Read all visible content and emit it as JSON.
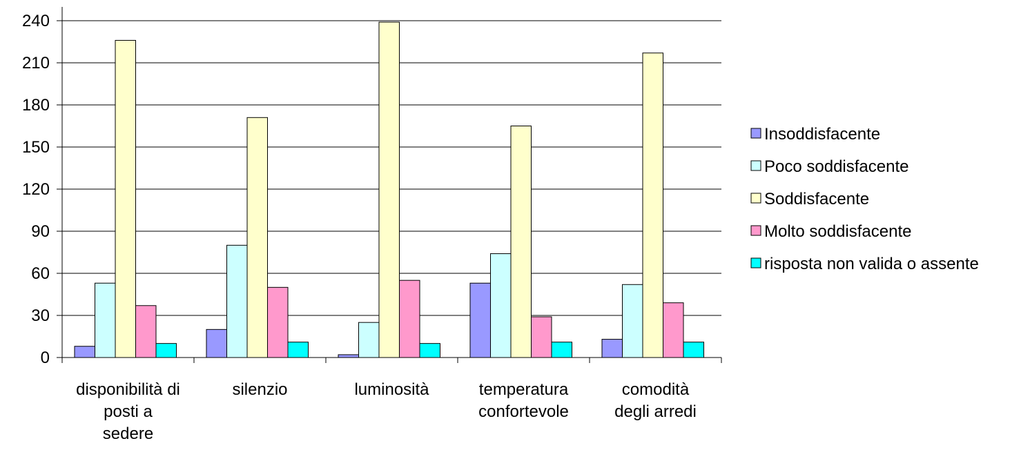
{
  "chart_data": {
    "type": "bar",
    "title": "",
    "xlabel": "",
    "ylabel": "",
    "ylim": [
      0,
      240
    ],
    "yticks": [
      "0",
      "30",
      "60",
      "90",
      "120",
      "150",
      "180",
      "210",
      "240"
    ],
    "grid": true,
    "legend_position": "right",
    "categories": [
      [
        "disponibilità di",
        "posti a",
        "sedere"
      ],
      [
        "silenzio"
      ],
      [
        "luminosità"
      ],
      [
        "temperatura",
        "confortevole"
      ],
      [
        "comodità",
        "degli arredi"
      ]
    ],
    "series": [
      {
        "name": "Insoddisfacente",
        "color": "#9999ff",
        "values": [
          8,
          20,
          2,
          53,
          13
        ]
      },
      {
        "name": "Poco soddisfacente",
        "color": "#ccffff",
        "values": [
          53,
          80,
          25,
          74,
          52
        ]
      },
      {
        "name": "Soddisfacente",
        "color": "#ffffcc",
        "values": [
          226,
          171,
          239,
          165,
          217
        ]
      },
      {
        "name": "Molto soddisfacente",
        "color": "#ff99cc",
        "values": [
          37,
          50,
          55,
          29,
          39
        ]
      },
      {
        "name": "risposta non valida o assente",
        "color": "#00ffff",
        "values": [
          10,
          11,
          10,
          11,
          11
        ]
      }
    ]
  }
}
